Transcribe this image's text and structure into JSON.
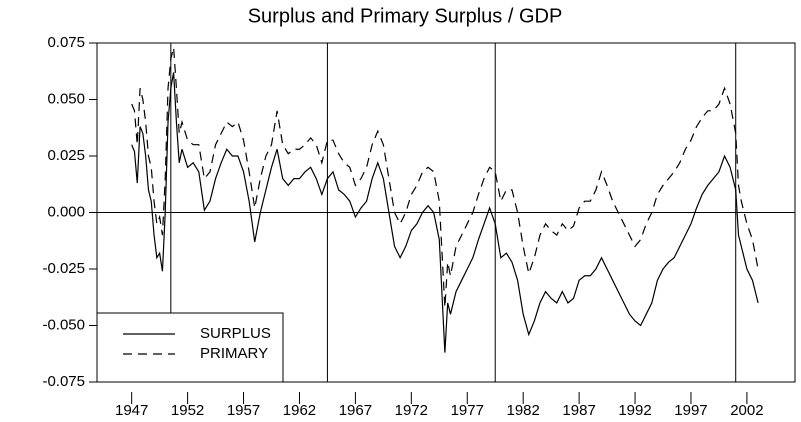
{
  "chart_data": {
    "type": "line",
    "title": "Surplus and Primary Surplus / GDP",
    "x": [
      1947,
      1947.25,
      1947.5,
      1947.75,
      1948,
      1948.25,
      1948.5,
      1948.75,
      1949,
      1949.25,
      1949.5,
      1949.75,
      1950,
      1950.25,
      1950.5,
      1950.75,
      1951,
      1951.25,
      1951.5,
      1952,
      1952.5,
      1953,
      1953.5,
      1954,
      1954.5,
      1955,
      1955.5,
      1956,
      1956.5,
      1957,
      1957.5,
      1958,
      1958.5,
      1959,
      1959.5,
      1960,
      1960.5,
      1961,
      1961.5,
      1962,
      1962.5,
      1963,
      1963.5,
      1964,
      1964.5,
      1965,
      1965.5,
      1966,
      1966.5,
      1967,
      1967.5,
      1968,
      1968.5,
      1969,
      1969.5,
      1970,
      1970.5,
      1971,
      1971.5,
      1972,
      1972.5,
      1973,
      1973.5,
      1974,
      1974.5,
      1975,
      1975.25,
      1975.5,
      1976,
      1976.5,
      1977,
      1977.5,
      1978,
      1978.5,
      1979,
      1979.5,
      1980,
      1980.5,
      1981,
      1981.5,
      1982,
      1982.5,
      1983,
      1983.5,
      1984,
      1984.5,
      1985,
      1985.5,
      1986,
      1986.5,
      1987,
      1987.5,
      1988,
      1988.5,
      1989,
      1989.5,
      1990,
      1990.5,
      1991,
      1991.5,
      1992,
      1992.5,
      1993,
      1993.5,
      1994,
      1994.5,
      1995,
      1995.5,
      1996,
      1996.5,
      1997,
      1997.5,
      1998,
      1998.5,
      1999,
      1999.5,
      2000,
      2000.5,
      2001,
      2001.25,
      2001.5,
      2002,
      2002.5,
      2003
    ],
    "series": [
      {
        "name": "SURPLUS",
        "color": "#000000",
        "dash": "solid",
        "values": [
          0.03,
          0.027,
          0.013,
          0.038,
          0.035,
          0.025,
          0.01,
          0.005,
          -0.01,
          -0.02,
          -0.018,
          -0.026,
          0.0,
          0.04,
          0.055,
          0.062,
          0.04,
          0.022,
          0.028,
          0.02,
          0.022,
          0.018,
          0.001,
          0.005,
          0.015,
          0.022,
          0.028,
          0.025,
          0.025,
          0.018,
          0.005,
          -0.013,
          0.0,
          0.01,
          0.02,
          0.028,
          0.015,
          0.012,
          0.015,
          0.015,
          0.018,
          0.02,
          0.015,
          0.008,
          0.015,
          0.018,
          0.01,
          0.008,
          0.005,
          -0.002,
          0.002,
          0.005,
          0.015,
          0.022,
          0.015,
          0.0,
          -0.015,
          -0.02,
          -0.015,
          -0.008,
          -0.005,
          0.0,
          0.003,
          0.0,
          -0.012,
          -0.062,
          -0.04,
          -0.045,
          -0.035,
          -0.03,
          -0.025,
          -0.02,
          -0.012,
          -0.005,
          0.002,
          -0.005,
          -0.02,
          -0.018,
          -0.022,
          -0.03,
          -0.045,
          -0.054,
          -0.048,
          -0.04,
          -0.035,
          -0.038,
          -0.04,
          -0.035,
          -0.04,
          -0.038,
          -0.03,
          -0.028,
          -0.028,
          -0.025,
          -0.02,
          -0.025,
          -0.03,
          -0.035,
          -0.04,
          -0.045,
          -0.048,
          -0.05,
          -0.045,
          -0.04,
          -0.03,
          -0.025,
          -0.022,
          -0.02,
          -0.015,
          -0.01,
          -0.005,
          0.002,
          0.008,
          0.012,
          0.015,
          0.018,
          0.025,
          0.02,
          0.01,
          -0.01,
          -0.015,
          -0.025,
          -0.03,
          -0.04
        ]
      },
      {
        "name": "PRIMARY",
        "color": "#000000",
        "dash": "dashed",
        "values": [
          0.048,
          0.045,
          0.03,
          0.055,
          0.05,
          0.04,
          0.025,
          0.02,
          0.005,
          -0.005,
          -0.002,
          -0.01,
          0.015,
          0.055,
          0.068,
          0.073,
          0.055,
          0.035,
          0.04,
          0.032,
          0.03,
          0.03,
          0.015,
          0.018,
          0.03,
          0.035,
          0.04,
          0.038,
          0.04,
          0.032,
          0.018,
          0.002,
          0.015,
          0.025,
          0.03,
          0.045,
          0.03,
          0.026,
          0.028,
          0.028,
          0.03,
          0.033,
          0.03,
          0.022,
          0.032,
          0.032,
          0.026,
          0.022,
          0.02,
          0.012,
          0.015,
          0.02,
          0.03,
          0.036,
          0.03,
          0.015,
          0.0,
          -0.005,
          0.0,
          0.008,
          0.012,
          0.018,
          0.02,
          0.018,
          0.005,
          -0.042,
          -0.022,
          -0.028,
          -0.015,
          -0.01,
          -0.005,
          0.0,
          0.008,
          0.015,
          0.02,
          0.018,
          0.005,
          0.01,
          0.01,
          0.0,
          -0.015,
          -0.027,
          -0.02,
          -0.01,
          -0.005,
          -0.008,
          -0.01,
          -0.005,
          -0.008,
          -0.006,
          0.002,
          0.005,
          0.005,
          0.01,
          0.018,
          0.012,
          0.005,
          0.0,
          -0.005,
          -0.01,
          -0.015,
          -0.012,
          -0.005,
          0.0,
          0.008,
          0.012,
          0.015,
          0.018,
          0.022,
          0.028,
          0.032,
          0.038,
          0.042,
          0.045,
          0.045,
          0.048,
          0.055,
          0.048,
          0.035,
          0.012,
          0.005,
          -0.005,
          -0.012,
          -0.025
        ]
      }
    ],
    "xlim": [
      1943.9,
      2006.3
    ],
    "xticks": [
      1947,
      1952,
      1957,
      1962,
      1967,
      1972,
      1977,
      1982,
      1987,
      1992,
      1997,
      2002
    ],
    "ylim": [
      -0.075,
      0.075
    ],
    "yticks": [
      -0.075,
      {
        "value": -0.05,
        "label": "-0.050"
      },
      -0.025,
      {
        "value": 0,
        "label": "0.000"
      },
      0.025,
      {
        "value": 0.05,
        "label": "0.050"
      },
      0.075
    ],
    "xlines": [
      1950.5,
      1964.5,
      1979.5,
      2001
    ],
    "hlines": [
      0
    ],
    "legend": "lower left"
  }
}
